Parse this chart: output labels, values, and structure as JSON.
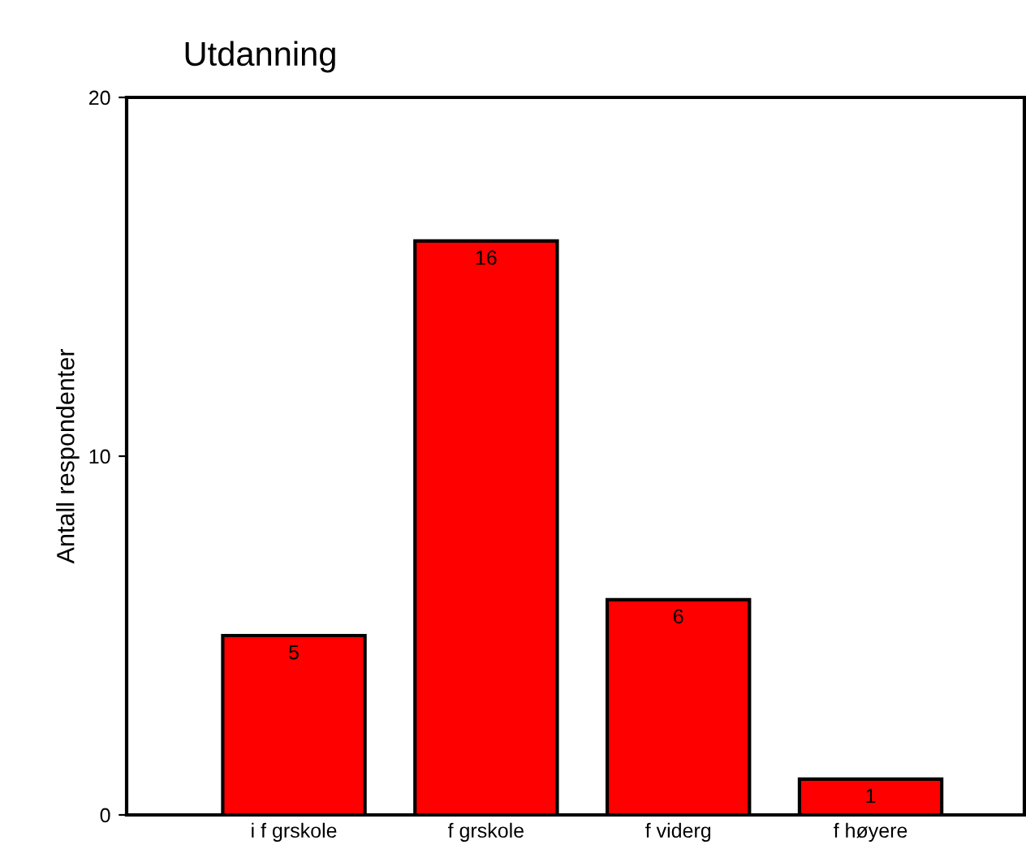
{
  "chart_data": {
    "type": "bar",
    "title": "Utdanning",
    "ylabel": "Antall respondenter",
    "categories": [
      "i f grskole",
      "f grskole",
      "f viderg",
      "f høyere"
    ],
    "values": [
      5,
      16,
      6,
      1
    ],
    "color": "#ff0000",
    "ylim": [
      0,
      20
    ],
    "yticks": [
      0,
      10,
      20
    ],
    "grid": false,
    "data_labels": true
  }
}
